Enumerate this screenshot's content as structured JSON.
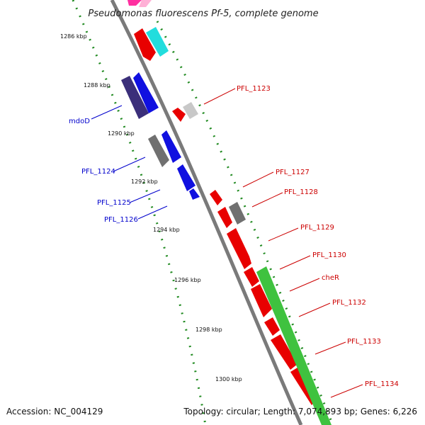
{
  "title": "Pseudomonas fluorescens Pf-5, complete genome",
  "ticks": [
    "1286 kbp",
    "1288 kbp",
    "1290 kbp",
    "1292 kbp",
    "1294 kbp",
    "1296 kbp",
    "1298 kbp",
    "1300 kbp"
  ],
  "right_labels": [
    "PFL_1123",
    "PFL_1127",
    "PFL_1128",
    "PFL_1129",
    "PFL_1130",
    "cheR",
    "PFL_1132",
    "PFL_1133",
    "PFL_1134"
  ],
  "left_labels": [
    "mdoD",
    "PFL_1124",
    "PFL_1125",
    "PFL_1126"
  ],
  "footer": {
    "accession": "Accession: NC_004129",
    "topology": "Topology: circular; Length: 7,074,893 bp; Genes: 6,226"
  },
  "colors": {
    "backbone": "#8c8c8c",
    "tick_dots": "#228b22",
    "right_label": "#cc0000",
    "left_label": "#0000cc",
    "gene_red": "#e80000",
    "gene_blue": "#1010e0",
    "gene_navy": "#3b2f7a",
    "gene_gray": "#707070",
    "gene_lightgray": "#c8c8c8",
    "gene_cyan": "#22dddd",
    "gene_pink": "#ff2fa0",
    "gene_green": "#3fc23f"
  }
}
